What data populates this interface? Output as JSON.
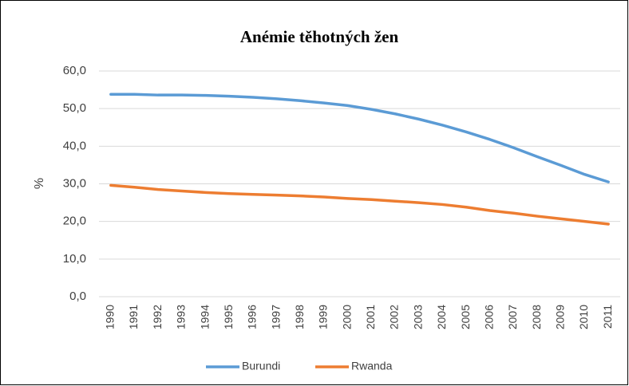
{
  "chart_data": {
    "type": "line",
    "title": "Anémie těhotných žen",
    "y_label": "%",
    "categories": [
      "1990",
      "1991",
      "1992",
      "1993",
      "1994",
      "1995",
      "1996",
      "1997",
      "1998",
      "1999",
      "2000",
      "2001",
      "2002",
      "2003",
      "2004",
      "2005",
      "2006",
      "2007",
      "2008",
      "2009",
      "2010",
      "2011"
    ],
    "series": [
      {
        "name": "Burundi",
        "color": "#5b9bd5",
        "values": [
          53.8,
          53.8,
          53.6,
          53.6,
          53.5,
          53.3,
          53.0,
          52.6,
          52.1,
          51.5,
          50.8,
          49.8,
          48.6,
          47.2,
          45.6,
          43.8,
          41.8,
          39.6,
          37.2,
          34.9,
          32.5,
          30.5
        ]
      },
      {
        "name": "Rwanda",
        "color": "#ed7d31",
        "values": [
          29.6,
          29.1,
          28.5,
          28.1,
          27.7,
          27.4,
          27.2,
          27.0,
          26.8,
          26.5,
          26.1,
          25.8,
          25.4,
          25.0,
          24.5,
          23.8,
          22.9,
          22.2,
          21.4,
          20.7,
          20.0,
          19.3
        ]
      }
    ],
    "ylim": [
      0,
      60
    ],
    "yticks": [
      {
        "value": 0,
        "label": "0,0"
      },
      {
        "value": 10,
        "label": "10,0"
      },
      {
        "value": 20,
        "label": "20,0"
      },
      {
        "value": 30,
        "label": "30,0"
      },
      {
        "value": 40,
        "label": "40,0"
      },
      {
        "value": 50,
        "label": "50,0"
      },
      {
        "value": 60,
        "label": "60,0"
      }
    ],
    "grid": true,
    "legend": "bottom"
  }
}
